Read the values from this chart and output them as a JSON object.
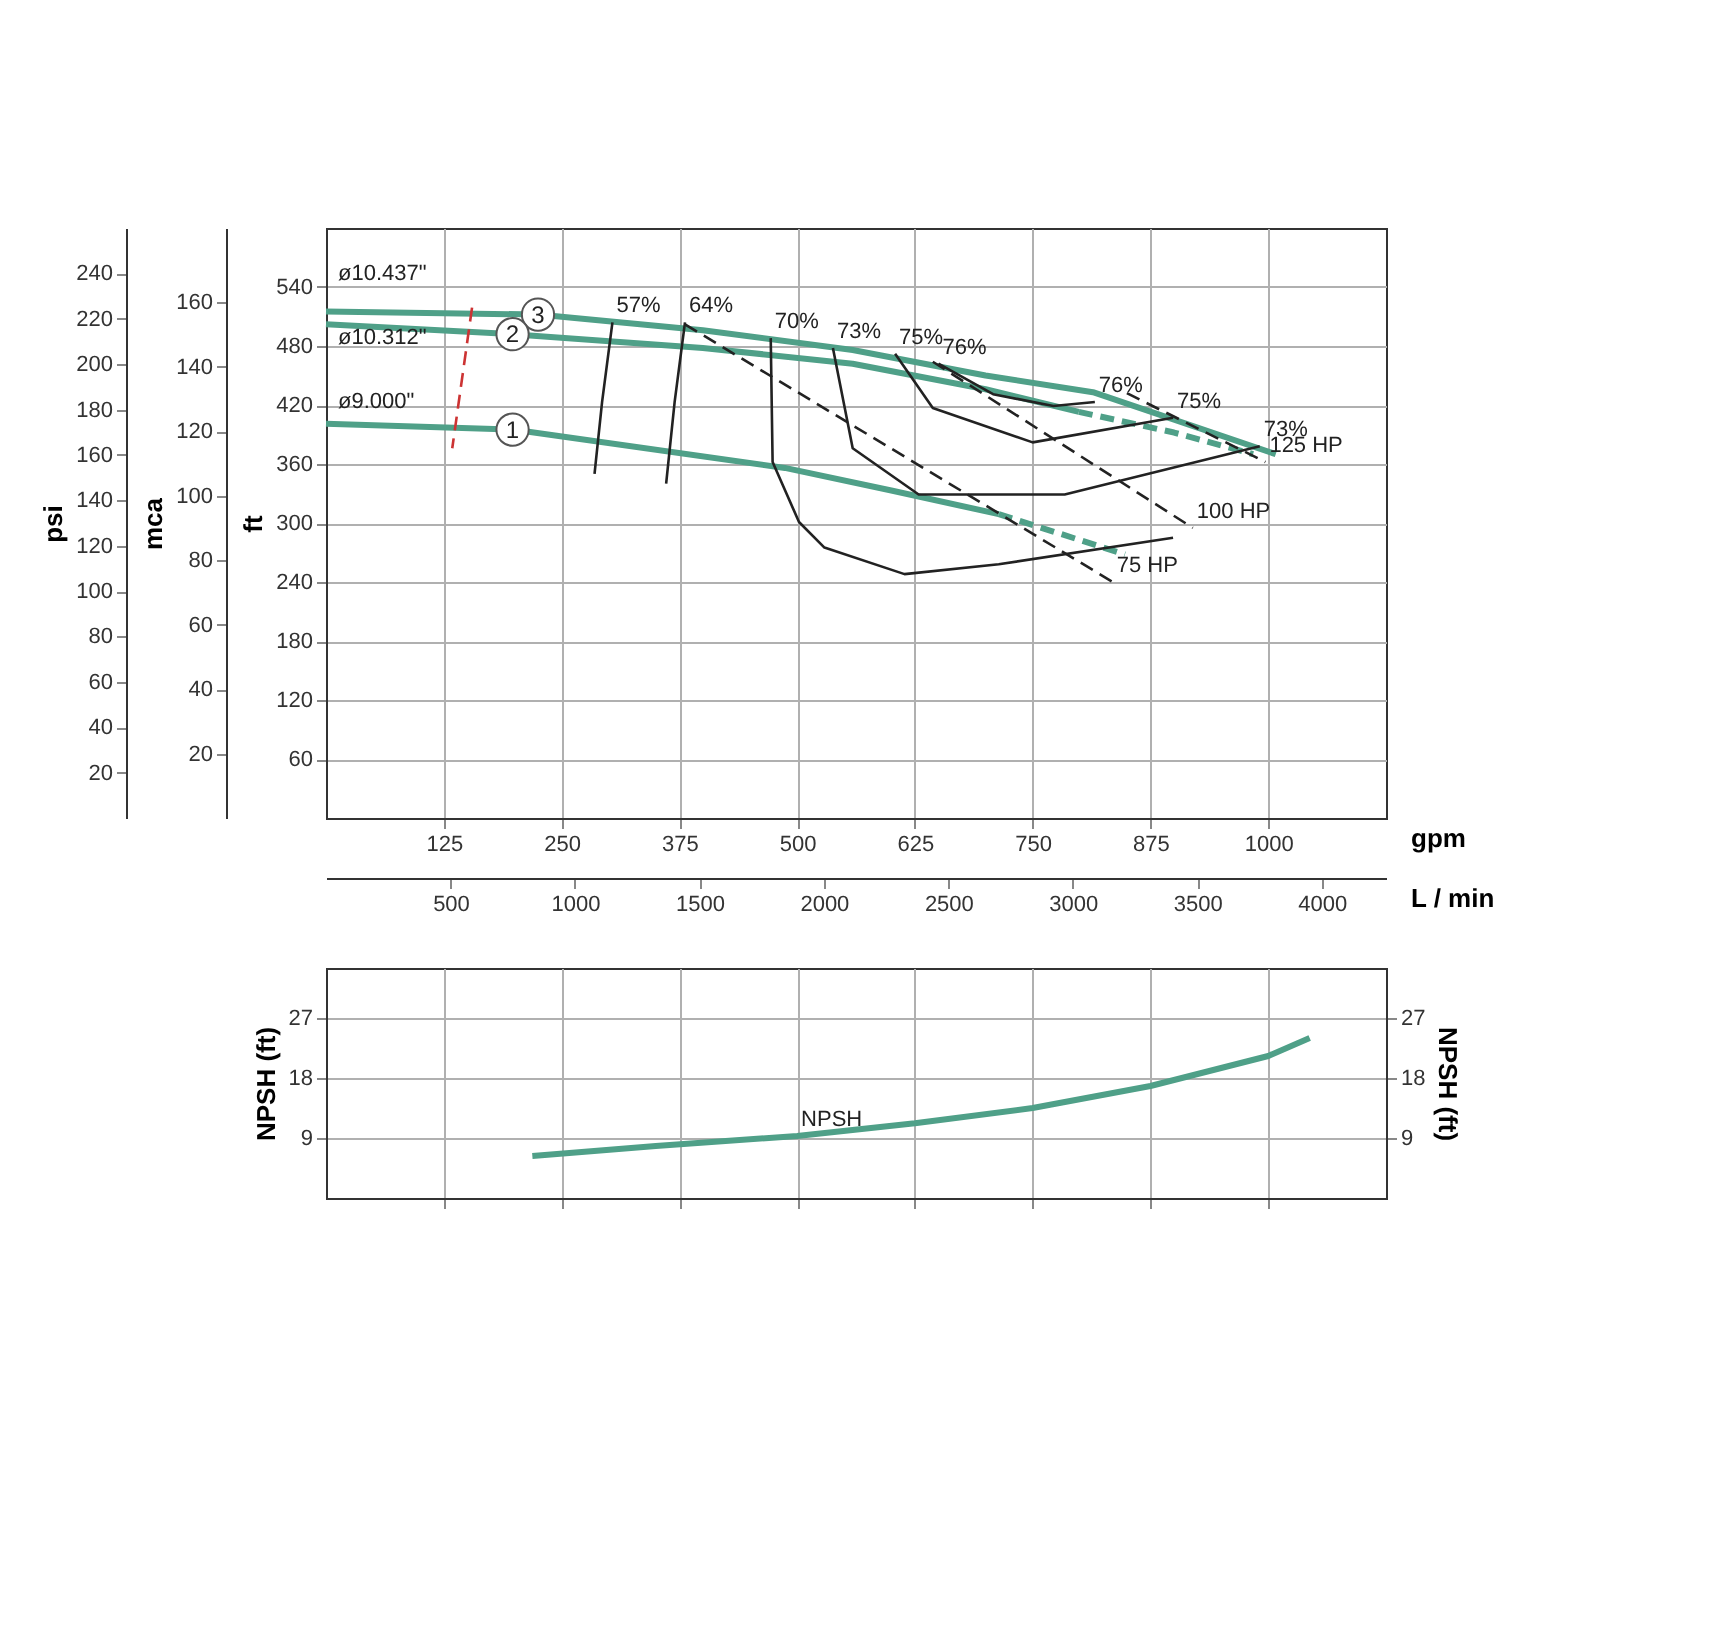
{
  "chart_data": [
    {
      "type": "line",
      "xlabel": "gpm",
      "x2label": "L / min",
      "ylabel": "ft",
      "y2label": "psi",
      "y3label": "mca",
      "xlim": [
        0,
        1125
      ],
      "xticks": [
        125,
        250,
        375,
        500,
        625,
        750,
        875,
        1000
      ],
      "x2lim": [
        0,
        4258
      ],
      "x2ticks": [
        500,
        1000,
        1500,
        2000,
        2500,
        3000,
        3500,
        4000
      ],
      "ylim": [
        0,
        600
      ],
      "yticks": [
        60,
        120,
        180,
        240,
        300,
        360,
        420,
        480,
        540
      ],
      "y2lim": [
        0,
        260
      ],
      "y2ticks": [
        20,
        40,
        60,
        80,
        100,
        120,
        140,
        160,
        180,
        200,
        220,
        240
      ],
      "y3lim": [
        0,
        183
      ],
      "y3ticks": [
        20,
        40,
        60,
        80,
        100,
        120,
        140,
        160
      ],
      "grid": true,
      "marker": "none",
      "series": [
        {
          "name": "3",
          "color": "#4fa088",
          "line_style": "solid",
          "x": [
            0,
            225,
            400,
            559,
            700,
            814,
            1008
          ],
          "values": [
            515,
            512,
            496,
            476,
            450,
            433,
            370
          ]
        },
        {
          "name": "2",
          "color": "#4fa088",
          "line_style": "solid",
          "x": [
            0,
            198,
            400,
            559,
            700,
            799
          ],
          "values": [
            502,
            492,
            478,
            462,
            436,
            413
          ]
        },
        {
          "color": "#4fa088",
          "line_style": "dashed",
          "x": [
            799,
            900,
            984
          ],
          "values": [
            413,
            392,
            370
          ]
        },
        {
          "name": "1",
          "color": "#4fa088",
          "line_style": "solid",
          "x": [
            0,
            198,
            487,
            600,
            714
          ],
          "values": [
            401,
            395,
            356,
            333,
            309
          ]
        },
        {
          "color": "#4fa088",
          "line_style": "dashed",
          "x": [
            714,
            848
          ],
          "values": [
            309,
            268
          ]
        },
        {
          "color": "#cc3333",
          "line_style": "dashed",
          "x": [
            155,
            134
          ],
          "values": [
            519,
            376
          ]
        },
        {
          "color": "#222222",
          "line_style": "solid",
          "x": [
            304,
            293,
            285
          ],
          "values": [
            504,
            423,
            350
          ]
        },
        {
          "color": "#222222",
          "line_style": "solid",
          "x": [
            381,
            370,
            361
          ],
          "values": [
            504,
            423,
            340
          ]
        },
        {
          "color": "#222222",
          "line_style": "solid",
          "x": [
            472,
            474,
            502,
            529,
            614,
            714,
            899
          ],
          "values": [
            488,
            362,
            301,
            275,
            248,
            258,
            285
          ]
        },
        {
          "color": "#222222",
          "line_style": "solid",
          "x": [
            538,
            559,
            629,
            784,
            991
          ],
          "values": [
            478,
            376,
            329,
            329,
            378
          ]
        },
        {
          "color": "#222222",
          "line_style": "solid",
          "x": [
            604,
            644,
            750,
            899
          ],
          "values": [
            472,
            417,
            382,
            407
          ]
        },
        {
          "color": "#222222",
          "line_style": "solid",
          "x": [
            650,
            708,
            772,
            816
          ],
          "values": [
            462,
            431,
            419,
            423
          ]
        },
        {
          "color": "#222222",
          "line_style": "dashed",
          "x": [
            381,
            835
          ],
          "values": [
            502,
            240
          ]
        },
        {
          "color": "#222222",
          "line_style": "dashed",
          "x": [
            644,
            920
          ],
          "values": [
            464,
            295
          ]
        },
        {
          "color": "#222222",
          "line_style": "dashed",
          "x": [
            850,
            997
          ],
          "values": [
            432,
            362
          ]
        }
      ],
      "annotations": [
        "ø10.437\"",
        "ø10.312\"",
        "ø9.000\"",
        {
          "text": "57%",
          "x": 304,
          "y": 504
        },
        {
          "text": "64%",
          "x": 381,
          "y": 504
        },
        {
          "text": "70%",
          "x": 472,
          "y": 488
        },
        {
          "text": "73%",
          "x": 538,
          "y": 478
        },
        {
          "text": "75%",
          "x": 604,
          "y": 472
        },
        {
          "text": "76%",
          "x": 650,
          "y": 462
        },
        {
          "text": "76%",
          "x": 816,
          "y": 423
        },
        {
          "text": "75%",
          "x": 899,
          "y": 407
        },
        {
          "text": "73%",
          "x": 991,
          "y": 378
        },
        {
          "text": "75 HP",
          "x": 835,
          "y": 240
        },
        {
          "text": "100 HP",
          "x": 920,
          "y": 295
        },
        {
          "text": "125 HP",
          "x": 997,
          "y": 362
        }
      ]
    },
    {
      "type": "line",
      "ylabel": "NPSH (ft)",
      "y2label": "NPSH (ft)",
      "tick_labels": "y",
      "grid": true,
      "marker": "none",
      "xlim": [
        0,
        1125
      ],
      "xticks": [
        {
          "value": 125,
          "label": null
        },
        {
          "value": 250,
          "label": null
        },
        {
          "value": 375,
          "label": null
        },
        {
          "value": 500,
          "label": null
        },
        {
          "value": 625,
          "label": null
        },
        {
          "value": 750,
          "label": null
        },
        {
          "value": 875,
          "label": null
        },
        {
          "value": 1000,
          "label": null
        }
      ],
      "ylim": [
        0,
        34.5
      ],
      "yticks": [
        9,
        18,
        27
      ],
      "y2lim": [
        0,
        34.5
      ],
      "y2ticks": [
        9,
        18,
        27
      ],
      "series": [
        {
          "color": "#4fa088",
          "line_style": "solid",
          "x": [
            219,
            350,
            500,
            625,
            750,
            875,
            1000,
            1044
          ],
          "values": [
            6.3,
            7.8,
            9.3,
            11.2,
            13.5,
            16.8,
            21.3,
            24
          ]
        }
      ],
      "annotations": [
        {
          "text": "NPSH",
          "x": 500,
          "y": 9.3
        }
      ]
    }
  ]
}
